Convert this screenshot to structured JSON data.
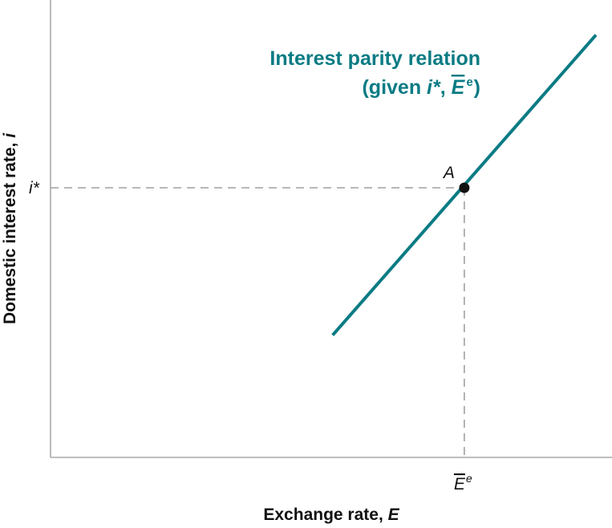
{
  "chart_data": {
    "type": "line",
    "title": "",
    "xlabel": "Exchange rate, ",
    "xlabel_var": "E",
    "ylabel": "Domestic interest rate, ",
    "ylabel_var": "i",
    "x_ticks": [
      {
        "base": "E",
        "sup": "e",
        "overbar": true,
        "at": "E_bar_e"
      }
    ],
    "y_ticks": [
      {
        "text": "i*",
        "at": "i_star"
      }
    ],
    "series": [
      {
        "label_line1": "Interest parity relation",
        "label_line2_prefix": "(given ",
        "label_line2_var": "i*",
        "label_line2_sep": ", ",
        "label_line2_base": "E",
        "label_line2_sup": "e",
        "label_line2_suffix": ")",
        "points": [
          [
            0.3,
            0.18
          ],
          [
            1.7,
            1.85
          ]
        ]
      }
    ],
    "points": [
      {
        "label": "A",
        "x": 1.0,
        "y": 1.0
      }
    ],
    "xlim": [
      -1.2,
      1.7
    ],
    "ylim": [
      -0.5,
      2.0
    ],
    "grid": false,
    "colors": {
      "curve": "#0a7b84",
      "point": "#111111",
      "axis": "#a9aaa9"
    }
  }
}
